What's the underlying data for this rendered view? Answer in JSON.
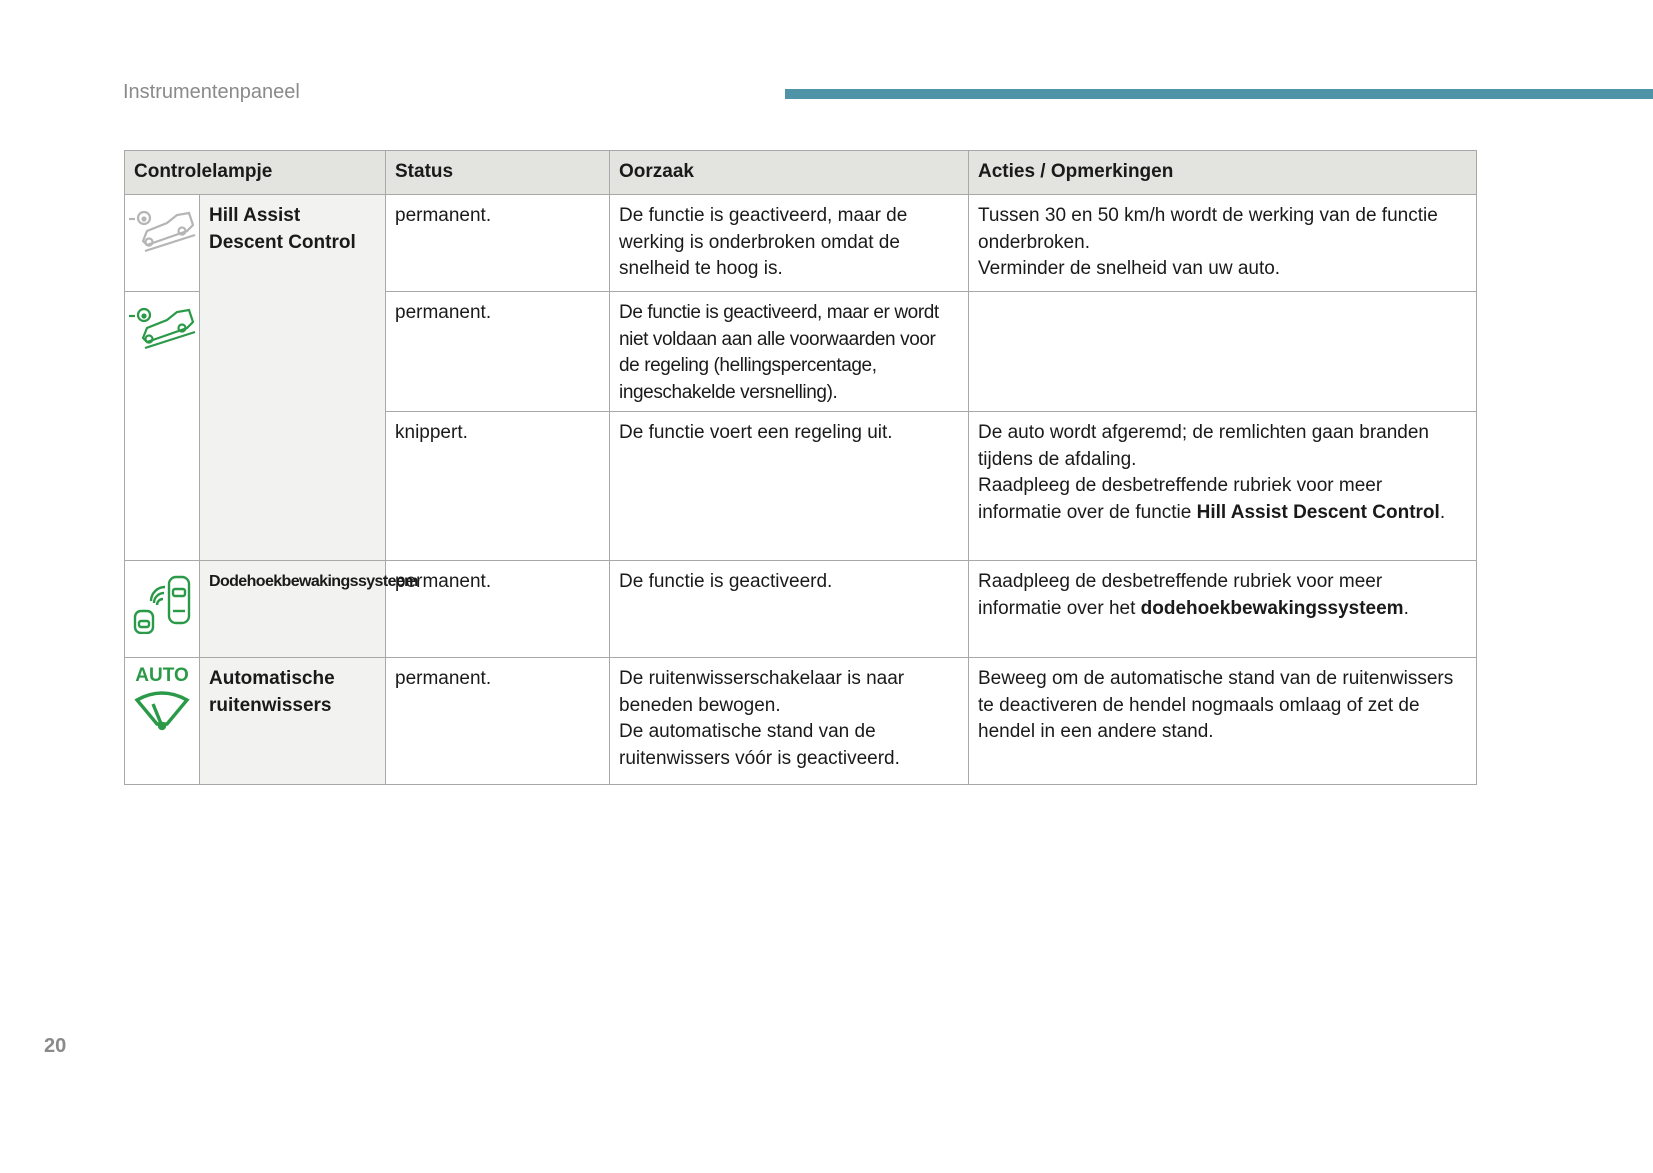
{
  "header": {
    "section_title": "Instrumentenpaneel",
    "accent_color": "#4f93a6"
  },
  "page_number": "20",
  "table": {
    "columns": [
      "Controlelampje",
      "Status",
      "Oorzaak",
      "Acties / Opmerkingen"
    ],
    "groups": [
      {
        "name": "Hill Assist Descent Control",
        "rows": [
          {
            "icon": "hill-descent-grey-icon",
            "status": "permanent.",
            "cause": "De functie is geactiveerd, maar de werking is onderbroken omdat de snelheid te hoog is.",
            "action_lines": [
              "Tussen 30 en 50 km/h wordt de werking van de functie onderbroken.",
              "Verminder de snelheid van uw auto."
            ]
          },
          {
            "icon": "hill-descent-green-icon",
            "status": "permanent.",
            "cause": "De functie is geactiveerd, maar er wordt niet voldaan aan alle voorwaarden voor de regeling (hellingspercentage, ingeschakelde versnelling).",
            "action_lines": []
          },
          {
            "status": "knippert.",
            "cause": "De functie voert een regeling uit.",
            "action_lines": [
              "De auto wordt afgeremd; de remlichten gaan branden tijdens de afdaling."
            ],
            "action_pre": "Raadpleeg de desbetreffende rubriek voor meer informatie over de functie ",
            "action_bold": "Hill Assist Descent Control",
            "action_post": "."
          }
        ]
      },
      {
        "name": "Dodehoekbewakingssysteem",
        "rows": [
          {
            "icon": "blind-spot-icon",
            "status": "permanent.",
            "cause": "De functie is geactiveerd.",
            "action_pre": "Raadpleeg de desbetreffende rubriek voor meer informatie over het ",
            "action_bold": "dodehoekbewakingssysteem",
            "action_post": "."
          }
        ]
      },
      {
        "name": "Automatische ruitenwissers",
        "rows": [
          {
            "icon": "auto-wiper-icon",
            "icon_label": "AUTO",
            "status": "permanent.",
            "cause_lines": [
              "De ruitenwisserschakelaar is naar beneden bewogen.",
              "De automatische stand van de ruitenwissers vóór is geactiveerd."
            ],
            "action_lines": [
              "Beweeg om de automatische stand van de ruitenwissers te deactiveren de hendel nogmaals omlaag of zet de hendel in een andere stand."
            ]
          }
        ]
      }
    ]
  },
  "colors": {
    "icon_green": "#2a9a48",
    "icon_grey": "#b5b5b5",
    "header_bg": "#e3e3e0",
    "name_bg": "#f2f2f1"
  }
}
